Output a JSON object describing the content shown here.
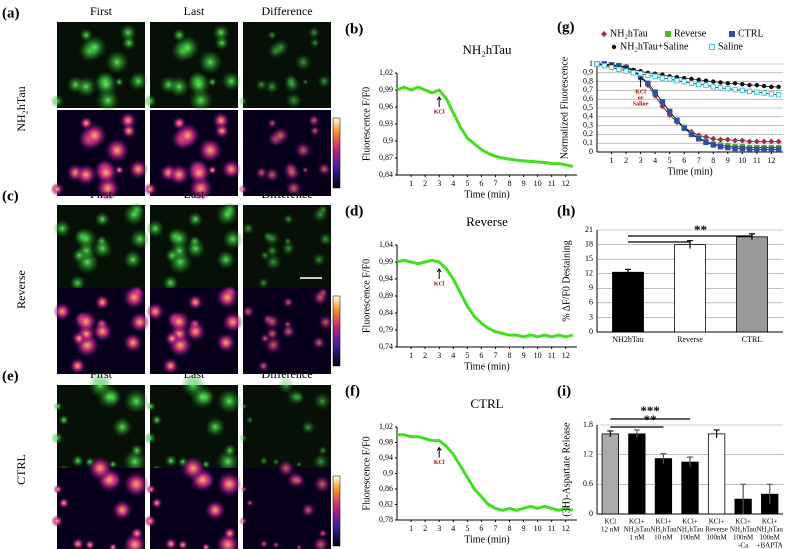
{
  "panel_labels": [
    "(a)",
    "(b)",
    "(c)",
    "(d)",
    "(e)",
    "(f)",
    "(g)",
    "(h)",
    "(i)"
  ],
  "images": [
    {
      "columns": [
        "First",
        "Last",
        "Difference"
      ],
      "row_label": "NH₂hTau"
    },
    {
      "columns": [
        "First",
        "Last",
        "Difference"
      ],
      "row_label": "Reverse"
    },
    {
      "columns": [
        "First",
        "Last",
        "Difference"
      ],
      "row_label": "CTRL"
    }
  ],
  "chart_data": [
    {
      "type": "line",
      "title": "NH₂hTau",
      "xlabel": "Time (min)",
      "ylabel": "Fluorescence F/F0",
      "annotations": [
        "KCl"
      ],
      "x": [
        0,
        0.5,
        1,
        1.5,
        2,
        2.5,
        3,
        3.5,
        4,
        4.5,
        5,
        5.5,
        6,
        6.5,
        7,
        7.5,
        8,
        8.5,
        9,
        9.5,
        10,
        10.5,
        11,
        11.5,
        12,
        12.5
      ],
      "series": [
        {
          "name": null,
          "color": "#44dd22",
          "values": [
            0.99,
            0.995,
            0.99,
            0.995,
            0.99,
            0.985,
            0.99,
            0.975,
            0.95,
            0.925,
            0.905,
            0.895,
            0.885,
            0.878,
            0.873,
            0.87,
            0.868,
            0.866,
            0.865,
            0.864,
            0.863,
            0.862,
            0.86,
            0.86,
            0.858,
            0.855
          ]
        }
      ],
      "xlim": [
        0,
        12.8
      ],
      "xticks": [
        1,
        2,
        3,
        4,
        5,
        6,
        7,
        8,
        9,
        10,
        11,
        12
      ],
      "ylim": [
        0.84,
        1.02
      ],
      "yticks": [
        {
          "value": 0.84,
          "label": "0,84"
        },
        {
          "value": 0.87,
          "label": "0,87"
        },
        {
          "value": 0.9,
          "label": "0,9"
        },
        {
          "value": 0.93,
          "label": "0,93"
        },
        {
          "value": 0.96,
          "label": "0,96"
        },
        {
          "value": 0.99,
          "label": "0,99"
        },
        {
          "value": 1.02,
          "label": "1,02"
        }
      ],
      "grid": false
    },
    {
      "type": "line",
      "title": "Reverse",
      "xlabel": "Time (min)",
      "ylabel": "Fluorescence F/F0",
      "annotations": [
        "KCl"
      ],
      "x": [
        0,
        0.5,
        1,
        1.5,
        2,
        2.5,
        3,
        3.5,
        4,
        4.5,
        5,
        5.5,
        6,
        6.5,
        7,
        7.5,
        8,
        8.5,
        9,
        9.5,
        10,
        10.5,
        11,
        11.5,
        12,
        12.5
      ],
      "series": [
        {
          "name": null,
          "color": "#44dd22",
          "values": [
            0.99,
            0.995,
            0.99,
            0.985,
            0.99,
            0.995,
            0.99,
            0.97,
            0.94,
            0.9,
            0.86,
            0.83,
            0.81,
            0.795,
            0.785,
            0.78,
            0.775,
            0.775,
            0.77,
            0.775,
            0.77,
            0.775,
            0.77,
            0.775,
            0.77,
            0.775
          ]
        }
      ],
      "xlim": [
        0,
        12.8
      ],
      "xticks": [
        1,
        2,
        3,
        4,
        5,
        6,
        7,
        8,
        9,
        10,
        11,
        12
      ],
      "ylim": [
        0.74,
        1.04
      ],
      "yticks": [
        {
          "value": 0.74,
          "label": "0,74"
        },
        {
          "value": 0.79,
          "label": "0,79"
        },
        {
          "value": 0.84,
          "label": "0,84"
        },
        {
          "value": 0.89,
          "label": "0,89"
        },
        {
          "value": 0.94,
          "label": "0,94"
        },
        {
          "value": 0.99,
          "label": "0,99"
        },
        {
          "value": 1.04,
          "label": "1,04"
        }
      ],
      "grid": false
    },
    {
      "type": "line",
      "title": "CTRL",
      "xlabel": "Time (min)",
      "ylabel": "Fluorescence F/F0",
      "annotations": [
        "KCl"
      ],
      "x": [
        0,
        0.5,
        1,
        1.5,
        2,
        2.5,
        3,
        3.5,
        4,
        4.5,
        5,
        5.5,
        6,
        6.5,
        7,
        7.5,
        8,
        8.5,
        9,
        9.5,
        10,
        10.5,
        11,
        11.5,
        12,
        12.5
      ],
      "series": [
        {
          "name": null,
          "color": "#44dd22",
          "values": [
            1,
            1,
            0.995,
            0.995,
            0.99,
            0.985,
            0.985,
            0.97,
            0.95,
            0.92,
            0.89,
            0.86,
            0.84,
            0.82,
            0.81,
            0.805,
            0.81,
            0.805,
            0.81,
            0.815,
            0.81,
            0.815,
            0.81,
            0.805,
            0.81,
            0.805
          ]
        }
      ],
      "xlim": [
        0,
        12.8
      ],
      "xticks": [
        1,
        2,
        3,
        4,
        5,
        6,
        7,
        8,
        9,
        10,
        11,
        12
      ],
      "ylim": [
        0.78,
        1.02
      ],
      "yticks": [
        {
          "value": 0.78,
          "label": "0,78"
        },
        {
          "value": 0.82,
          "label": "0,82"
        },
        {
          "value": 0.86,
          "label": "0,86"
        },
        {
          "value": 0.9,
          "label": "0,9"
        },
        {
          "value": 0.94,
          "label": "0,94"
        },
        {
          "value": 0.98,
          "label": "0,98"
        },
        {
          "value": 1.02,
          "label": "1,02"
        }
      ],
      "grid": false
    },
    {
      "type": "scatter",
      "xlabel": "Time (min)",
      "ylabel": "Normalized Fluorescence",
      "annotations": [
        "KCl",
        "or",
        "Saline"
      ],
      "x": [
        0,
        0.5,
        1,
        1.5,
        2,
        2.5,
        3,
        3.5,
        4,
        4.5,
        5,
        5.5,
        6,
        6.5,
        7,
        7.5,
        8,
        8.5,
        9,
        9.5,
        10,
        10.5,
        11,
        11.5,
        12,
        12.5
      ],
      "series": [
        {
          "name": "NH₂hTau",
          "color": "#a0304a",
          "marker": "diamond",
          "values": [
            1,
            1,
            0.99,
            0.98,
            0.97,
            0.93,
            0.86,
            0.76,
            0.64,
            0.52,
            0.42,
            0.34,
            0.28,
            0.23,
            0.19,
            0.17,
            0.15,
            0.14,
            0.14,
            0.13,
            0.13,
            0.12,
            0.12,
            0.12,
            0.12,
            0.12
          ]
        },
        {
          "name": "Reverse",
          "color": "#55b030",
          "marker": "square",
          "values": [
            1,
            1,
            0.99,
            0.98,
            0.96,
            0.92,
            0.86,
            0.78,
            0.68,
            0.57,
            0.46,
            0.36,
            0.28,
            0.21,
            0.16,
            0.12,
            0.09,
            0.08,
            0.07,
            0.06,
            0.06,
            0.05,
            0.05,
            0.05,
            0.05,
            0.05
          ]
        },
        {
          "name": "CTRL",
          "color": "#2d4fa8",
          "marker": "square",
          "values": [
            1,
            1,
            0.99,
            0.98,
            0.96,
            0.92,
            0.86,
            0.78,
            0.68,
            0.57,
            0.46,
            0.36,
            0.27,
            0.2,
            0.15,
            0.11,
            0.08,
            0.06,
            0.05,
            0.04,
            0.04,
            0.03,
            0.03,
            0.03,
            0.03,
            0.03
          ]
        },
        {
          "name": "NH₂hTau+Saline",
          "color": "#111111",
          "marker": "circle",
          "values": [
            1,
            0.99,
            0.98,
            0.96,
            0.95,
            0.93,
            0.92,
            0.9,
            0.89,
            0.88,
            0.86,
            0.85,
            0.84,
            0.83,
            0.82,
            0.81,
            0.8,
            0.79,
            0.78,
            0.78,
            0.77,
            0.76,
            0.76,
            0.75,
            0.74,
            0.74
          ]
        },
        {
          "name": "Saline",
          "color": "#3cc8d8",
          "marker": "open-square",
          "values": [
            1,
            0.98,
            0.96,
            0.94,
            0.92,
            0.9,
            0.89,
            0.87,
            0.86,
            0.84,
            0.83,
            0.81,
            0.8,
            0.78,
            0.77,
            0.76,
            0.74,
            0.73,
            0.72,
            0.71,
            0.7,
            0.69,
            0.68,
            0.67,
            0.66,
            0.65
          ]
        }
      ],
      "xlim": [
        0,
        12.8
      ],
      "xticks": [
        1,
        2,
        3,
        4,
        5,
        6,
        7,
        8,
        9,
        10,
        11,
        12
      ],
      "ylim": [
        0,
        1
      ],
      "yticks": [
        0,
        {
          "value": 0.1,
          "label": "0,1"
        },
        {
          "value": 0.2,
          "label": "0,2"
        },
        {
          "value": 0.3,
          "label": "0,3"
        },
        {
          "value": 0.4,
          "label": "0,4"
        },
        {
          "value": 0.5,
          "label": "0,5"
        },
        {
          "value": 0.6,
          "label": "0,6"
        },
        {
          "value": 0.7,
          "label": "0,7"
        },
        {
          "value": 0.8,
          "label": "0,8"
        },
        {
          "value": 0.9,
          "label": "0,9"
        },
        1
      ],
      "grid": true
    },
    {
      "type": "bar",
      "ylabel": "% ΔF/F0 Destaining",
      "annotations": [
        "**"
      ],
      "categories": [
        [
          "NH2hTau"
        ],
        [
          "Reverse"
        ],
        [
          "CTRL"
        ]
      ],
      "values": [
        12.3,
        18,
        19.6
      ],
      "errors": [
        0.6,
        0.8,
        0.6
      ],
      "colors": [
        "#000000",
        "#ffffff",
        "#999999"
      ],
      "ylim": [
        0,
        21
      ],
      "yticks": [
        0,
        3,
        6,
        9,
        12,
        15,
        18,
        21
      ],
      "grid": true
    },
    {
      "type": "bar",
      "ylabel": "(3H)-Aspartate Release",
      "annotations": [
        "***",
        "**"
      ],
      "categories": [
        [
          "KCl",
          "12 nM"
        ],
        [
          "KCl+",
          "NH₂hTau",
          "1 nM"
        ],
        [
          "KCl+",
          "NH₂hTau",
          "10 nM"
        ],
        [
          "KCl+",
          "NH₂hTau",
          "100nM"
        ],
        [
          "KCl+",
          "Reverse",
          "100nM"
        ],
        [
          "KCl+",
          "NH₂hTau",
          "100nM",
          "-Ca"
        ],
        [
          "KCl+",
          "NH₂hTau",
          "100nM",
          "+BAPTA"
        ]
      ],
      "values": [
        1.62,
        1.62,
        1.12,
        1.05,
        1.62,
        0.3,
        0.4
      ],
      "errors": [
        0.06,
        0.08,
        0.1,
        0.1,
        0.08,
        0.3,
        0.2
      ],
      "colors": [
        "#aaaaaa",
        "#000000",
        "#000000",
        "#000000",
        "#ffffff",
        "#000000",
        "#000000"
      ],
      "ylim": [
        0,
        1.8
      ],
      "yticks": [
        0,
        0.6,
        1.2,
        1.8
      ],
      "grid": true
    }
  ]
}
